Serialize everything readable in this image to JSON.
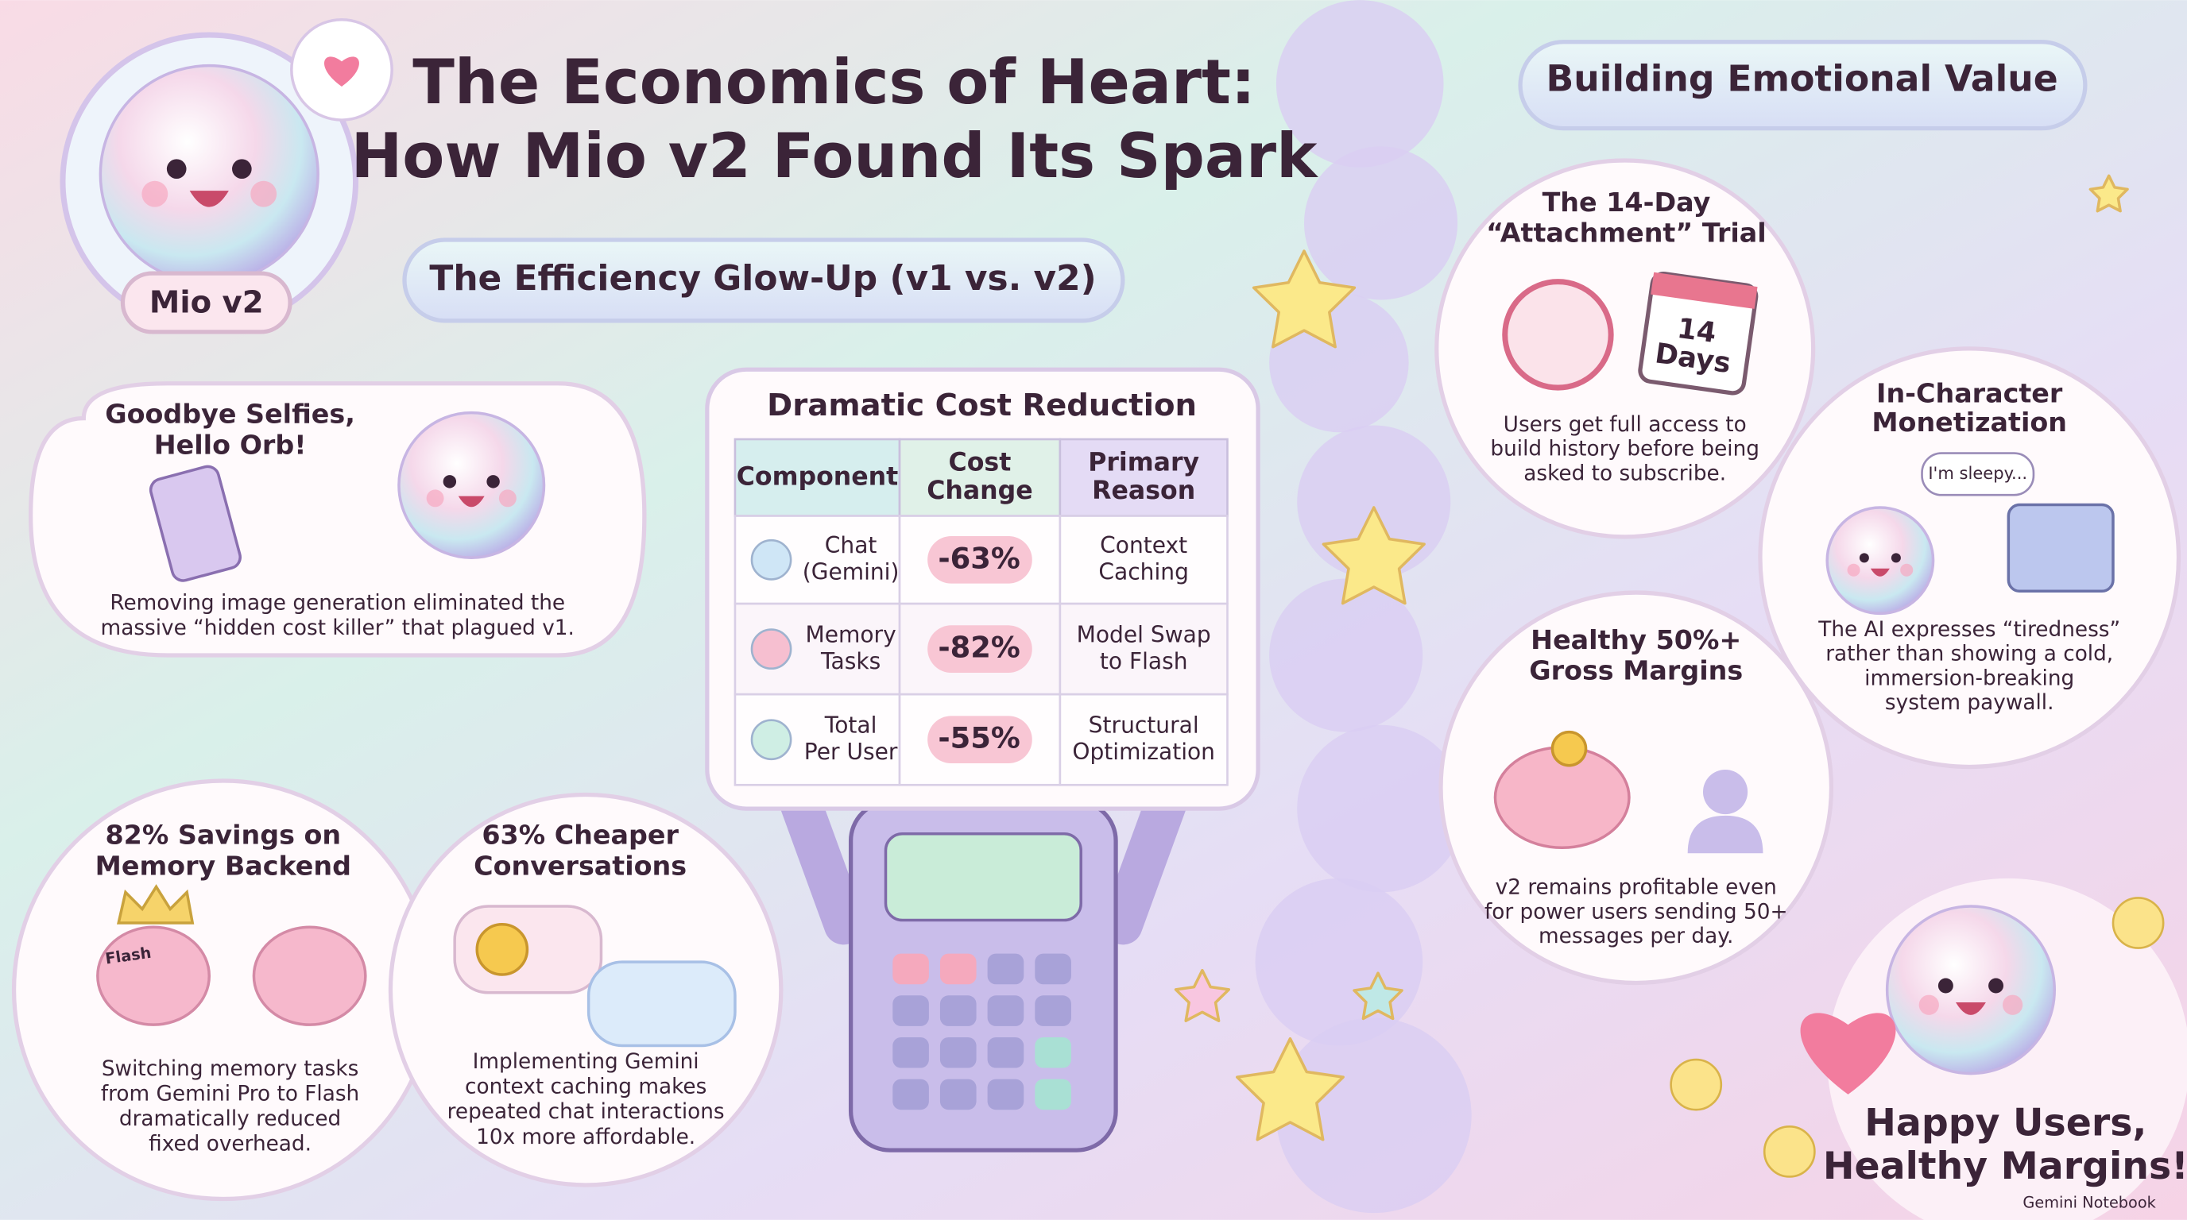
{
  "header": {
    "title_lines": [
      "The Economics of Heart:",
      "How Mio v2 Found Its Spark"
    ],
    "badge": "Mio v2",
    "subtitle": "The Efficiency Glow-Up (v1 vs. v2)"
  },
  "left_panels": [
    {
      "title_lines": [
        "Goodbye Selfies,",
        "Hello Orb!"
      ],
      "body_lines": [
        "Removing image generation eliminated the",
        "massive “hidden cost killer” that plagued v1."
      ]
    },
    {
      "title_lines": [
        "82% Savings on",
        "Memory Backend"
      ],
      "label": "Flash",
      "body_lines": [
        "Switching memory tasks",
        "from Gemini Pro to Flash",
        "dramatically reduced",
        "fixed overhead."
      ]
    },
    {
      "title_lines": [
        "63% Cheaper",
        "Conversations"
      ],
      "body_lines": [
        "Implementing Gemini",
        "context caching makes",
        "repeated chat interactions",
        "10x more affordable."
      ]
    }
  ],
  "table": {
    "title": "Dramatic Cost Reduction",
    "headers": [
      [
        "Component"
      ],
      [
        "Cost",
        "Change"
      ],
      [
        "Primary",
        "Reason"
      ]
    ],
    "rows": [
      [
        [
          "Chat",
          "(Gemini)"
        ],
        [
          "-63%"
        ],
        [
          "Context",
          "Caching"
        ]
      ],
      [
        [
          "Memory",
          "Tasks"
        ],
        [
          "-82%"
        ],
        [
          "Model Swap",
          "to Flash"
        ]
      ],
      [
        [
          "Total",
          "Per User"
        ],
        [
          "-55%"
        ],
        [
          "Structural",
          "Optimization"
        ]
      ]
    ]
  },
  "right": {
    "heading": "Building Emotional Value",
    "panels": [
      {
        "title_lines": [
          "The 14-Day",
          "“Attachment” Trial"
        ],
        "calendar_lines": [
          "14",
          "Days"
        ],
        "body_lines": [
          "Users get full access to",
          "build history before being",
          "asked to subscribe."
        ]
      },
      {
        "title_lines": [
          "In-Character",
          "Monetization"
        ],
        "bubble": "I'm sleepy...",
        "body_lines": [
          "The AI expresses “tiredness”",
          "rather than showing a cold,",
          "immersion-breaking",
          "system paywall."
        ]
      },
      {
        "title_lines": [
          "Healthy 50%+",
          "Gross Margins"
        ],
        "body_lines": [
          "v2 remains profitable even",
          "for power users sending 50+",
          "messages per day."
        ]
      }
    ],
    "footer_lines": [
      "Happy Users,",
      "Healthy Margins!"
    ],
    "brand": "Gemini Notebook"
  }
}
